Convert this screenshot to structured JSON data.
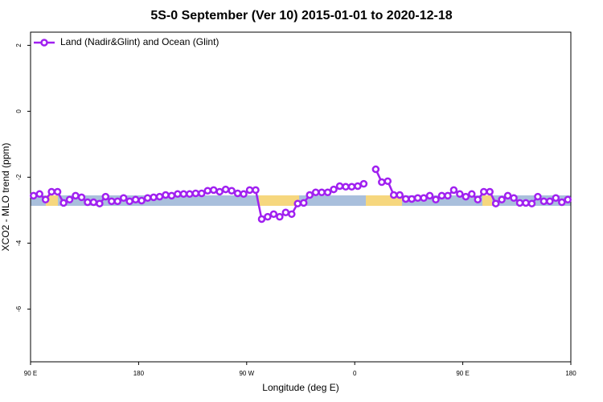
{
  "chart_data": {
    "type": "line",
    "title": "5S-0 September (Ver 10)   2015-01-01 to 2020-12-18",
    "x_label": "Longitude (deg E)",
    "y_label": "XCO2 - MLO trend (ppm)",
    "xlim": [
      90,
      540
    ],
    "ylim": [
      -7.6,
      2.4
    ],
    "xticks": [
      {
        "value": 90,
        "label": "90 E"
      },
      {
        "value": 180,
        "label": "180"
      },
      {
        "value": 270,
        "label": "90 W"
      },
      {
        "value": 360,
        "label": "0"
      },
      {
        "value": 450,
        "label": "90 E"
      },
      {
        "value": 540,
        "label": "180"
      }
    ],
    "yticks": [
      -6,
      -4,
      -2,
      0,
      2
    ],
    "legend": "top-left",
    "x": [
      92.5,
      97.5,
      102.5,
      107.5,
      112.5,
      117.5,
      122.5,
      127.5,
      132.5,
      137.5,
      142.5,
      147.5,
      152.5,
      157.5,
      162.5,
      167.5,
      172.5,
      177.5,
      182.5,
      187.5,
      192.5,
      197.5,
      202.5,
      207.5,
      212.5,
      217.5,
      222.5,
      227.5,
      232.5,
      237.5,
      242.5,
      247.5,
      252.5,
      257.5,
      262.5,
      267.5,
      272.5,
      277.5,
      282.5,
      287.5,
      292.5,
      297.5,
      302.5,
      307.5,
      312.5,
      317.5,
      322.5,
      327.5,
      332.5,
      337.5,
      342.5,
      347.5,
      352.5,
      357.5,
      362.5,
      367.5,
      372.5,
      377.5,
      382.5,
      387.5,
      392.5,
      397.5,
      402.5,
      407.5,
      412.5,
      417.5,
      422.5,
      427.5,
      432.5,
      437.5,
      442.5,
      447.5,
      452.5,
      457.5,
      462.5,
      467.5,
      472.5,
      477.5,
      482.5,
      487.5,
      492.5,
      497.5,
      502.5,
      507.5,
      512.5,
      517.5,
      522.5,
      527.5,
      532.5,
      537.5
    ],
    "series": [
      {
        "name": "Land (Nadir&Glint) and Ocean (Glint)",
        "color": "#a020f0",
        "values": [
          -2.56,
          -2.51,
          -2.68,
          -2.44,
          -2.44,
          -2.78,
          -2.68,
          -2.56,
          -2.61,
          -2.76,
          -2.76,
          -2.8,
          -2.59,
          -2.73,
          -2.73,
          -2.63,
          -2.73,
          -2.68,
          -2.71,
          -2.63,
          -2.61,
          -2.59,
          -2.54,
          -2.56,
          -2.51,
          -2.51,
          -2.51,
          -2.49,
          -2.49,
          -2.41,
          -2.39,
          -2.44,
          -2.37,
          -2.41,
          -2.49,
          -2.51,
          -2.39,
          -2.39,
          -3.27,
          -3.2,
          -3.12,
          -3.2,
          -3.07,
          -3.12,
          -2.8,
          -2.78,
          -2.54,
          -2.46,
          -2.46,
          -2.46,
          -2.37,
          -2.27,
          -2.29,
          -2.29,
          -2.27,
          -2.2,
          null,
          -1.76,
          -2.15,
          -2.12,
          -2.54,
          -2.54,
          -2.66,
          -2.66,
          -2.63,
          -2.63,
          -2.56,
          -2.68,
          -2.56,
          -2.56,
          -2.39,
          -2.51,
          -2.59,
          -2.51,
          -2.68,
          -2.44,
          -2.44,
          -2.8,
          -2.68,
          -2.56,
          -2.63,
          -2.78,
          -2.78,
          -2.8,
          -2.59,
          -2.73,
          -2.73,
          -2.63,
          -2.76,
          -2.68
        ]
      }
    ]
  }
}
